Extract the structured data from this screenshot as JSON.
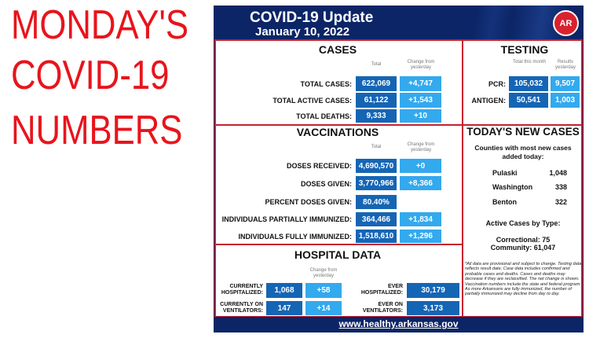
{
  "headline": [
    "MONDAY'S",
    "COVID-19",
    "NUMBERS"
  ],
  "header": {
    "title": "COVID-19 Update",
    "date": "January 10, 2022",
    "logo_text": "AR"
  },
  "cases": {
    "title": "CASES",
    "col_total": "Total",
    "col_change": "Change from yesterday",
    "rows": [
      {
        "label": "TOTAL CASES:",
        "total": "622,069",
        "change": "+4,747"
      },
      {
        "label": "TOTAL ACTIVE CASES:",
        "total": "61,122",
        "change": "+1,543"
      },
      {
        "label": "TOTAL DEATHS:",
        "total": "9,333",
        "change": "+10"
      }
    ]
  },
  "testing": {
    "title": "TESTING",
    "col_total": "Total this month",
    "col_results": "Results yesterday",
    "rows": [
      {
        "label": "PCR:",
        "total": "105,032",
        "results": "9,507"
      },
      {
        "label": "ANTIGEN:",
        "total": "50,541",
        "results": "1,003"
      }
    ]
  },
  "vaccinations": {
    "title": "VACCINATIONS",
    "col_total": "Total",
    "col_change": "Change from yesterday",
    "rows": [
      {
        "label": "DOSES RECEIVED:",
        "total": "4,690,570",
        "change": "+0"
      },
      {
        "label": "DOSES GIVEN:",
        "total": "3,770,966",
        "change": "+8,366"
      },
      {
        "label": "PERCENT DOSES GIVEN:",
        "total": "80.40%"
      },
      {
        "label": "INDIVIDUALS PARTIALLY IMMUNIZED:",
        "total": "364,466",
        "change": "+1,834"
      },
      {
        "label": "INDIVIDUALS FULLY IMMUNIZED:",
        "total": "1,518,610",
        "change": "+1,296"
      }
    ]
  },
  "new_cases": {
    "title": "TODAY'S NEW CASES",
    "subtitle": "Counties with most new cases added today:",
    "counties": [
      {
        "name": "Pulaski",
        "count": "1,048"
      },
      {
        "name": "Washington",
        "count": "338"
      },
      {
        "name": "Benton",
        "count": "322"
      }
    ],
    "active_title": "Active Cases by Type:",
    "correctional": "Correctional: 75",
    "community": "Community: 61,047"
  },
  "hospital": {
    "title": "HOSPITAL DATA",
    "col_change": "Change from yesterday",
    "current": [
      {
        "label": "CURRENTLY HOSPITALIZED:",
        "total": "1,068",
        "change": "+58"
      },
      {
        "label": "CURRENTLY ON VENTILATORS:",
        "total": "147",
        "change": "+14"
      }
    ],
    "ever": [
      {
        "label": "EVER HOSPITALIZED:",
        "total": "30,179"
      },
      {
        "label": "EVER ON VENTILATORS:",
        "total": "3,173"
      }
    ]
  },
  "footnote": "*All data are provisional and subject to change. Testing data reflects result date. Case data includes confirmed and probable cases and deaths. Cases and deaths may decrease if they are reclassified. The net change is shown. Vaccination numbers include the state and federal program. As more Arkansans are fully immunized, the number of partially immunized may decline from day to day.",
  "footer": {
    "url": "www.healthy.arkansas.gov"
  },
  "colors": {
    "navy": "#0b2566",
    "dark_box": "#1565b5",
    "light_box": "#33a9ee",
    "border_red": "#c8202f",
    "headline_red": "#e8141c"
  }
}
